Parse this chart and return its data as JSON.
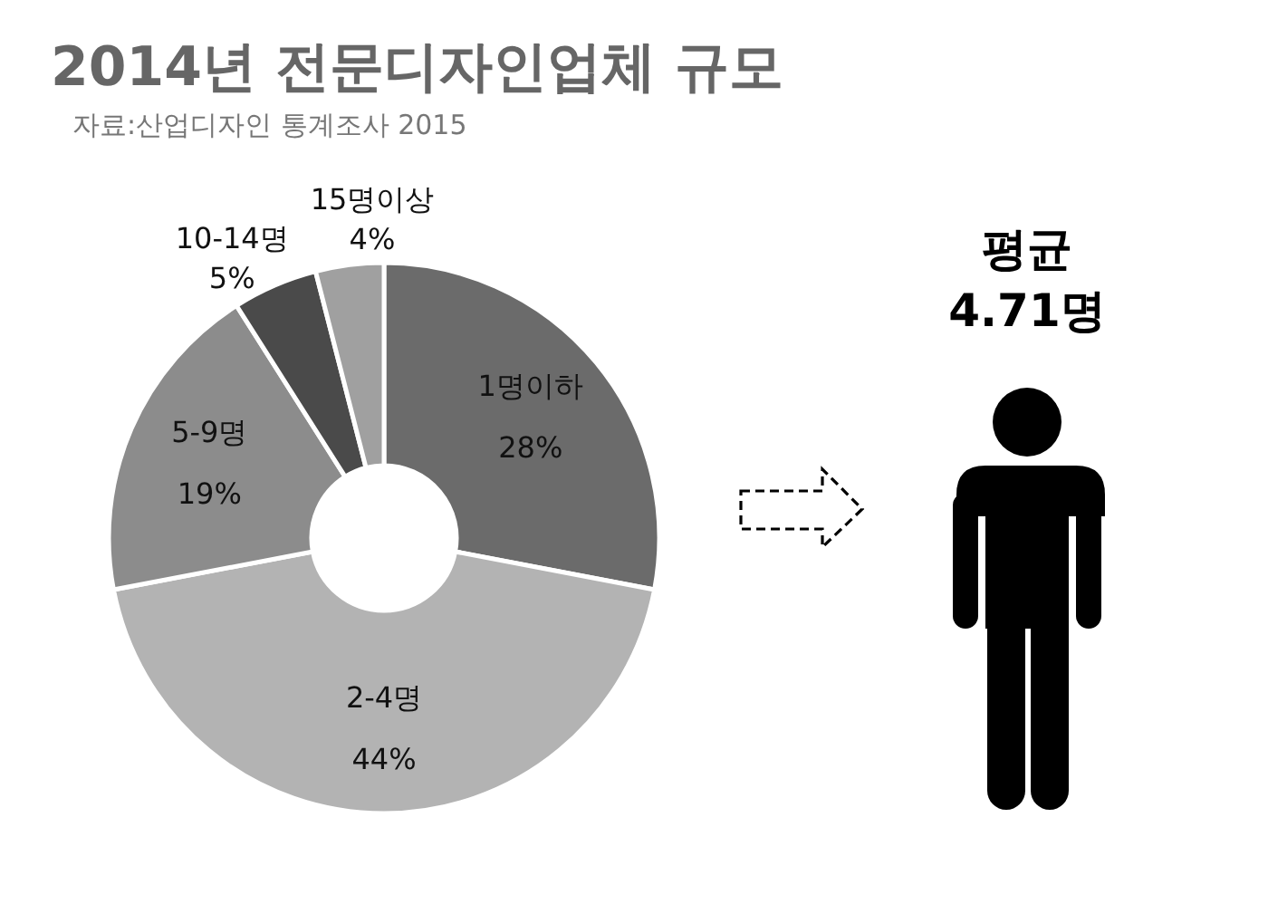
{
  "chart_data": {
    "type": "donut",
    "title": "2014년 전문디자인업체 규모",
    "annotations": [
      "자료:산업디자인 통계조사 2015",
      "평균\n4.71명"
    ],
    "categories": [
      "1명이하",
      "2-4명",
      "5-9명",
      "10-14명",
      "15명이상"
    ],
    "values": [
      28,
      44,
      19,
      5,
      4
    ],
    "colors": [
      "#6b6b6b",
      "#b3b3b3",
      "#8c8c8c",
      "#4a4a4a",
      "#a0a0a0"
    ],
    "value_labels": [
      "28%",
      "44%",
      "19%",
      "5%",
      "4%"
    ]
  }
}
